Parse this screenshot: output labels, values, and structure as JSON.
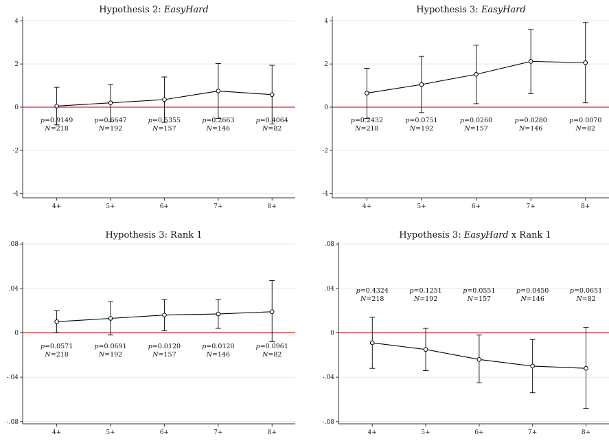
{
  "colors": {
    "zero_line": "#d62728",
    "series": "#000000",
    "grid": "#e6e6e6",
    "axis": "#333333"
  },
  "chart_data": [
    {
      "type": "line",
      "title_plain": "Hypothesis 2: ",
      "title_italic": "EasyHard",
      "title_suffix": "",
      "categories": [
        "4+",
        "5+",
        "6+",
        "7+",
        "8+"
      ],
      "values": [
        0.05,
        0.2,
        0.35,
        0.75,
        0.58
      ],
      "ci_low": [
        -0.82,
        -0.68,
        -0.7,
        -0.52,
        -0.78
      ],
      "ci_high": [
        0.92,
        1.06,
        1.4,
        2.02,
        1.94
      ],
      "yticks": [
        "4",
        "2",
        "0",
        "-2",
        "-4"
      ],
      "ytick_values": [
        4,
        2,
        0,
        -2,
        -4
      ],
      "ylim": [
        -4.2,
        4.2
      ],
      "reference_line": 0,
      "annotations_y": -0.35,
      "p_values": [
        "0.9149",
        "0.6647",
        "0.5355",
        "0.2663",
        "0.4064"
      ],
      "n_values": [
        "218",
        "192",
        "157",
        "146",
        "82"
      ]
    },
    {
      "type": "line",
      "title_plain": "Hypothesis 3: ",
      "title_italic": "EasyHard",
      "title_suffix": "",
      "categories": [
        "4+",
        "5+",
        "6+",
        "7+",
        "8+"
      ],
      "values": [
        0.65,
        1.05,
        1.52,
        2.12,
        2.06
      ],
      "ci_low": [
        -0.52,
        -0.25,
        0.16,
        0.62,
        0.2
      ],
      "ci_high": [
        1.8,
        2.35,
        2.87,
        3.6,
        3.92
      ],
      "yticks": [
        "4",
        "2",
        "0",
        "-2",
        "-4"
      ],
      "ytick_values": [
        4,
        2,
        0,
        -2,
        -4
      ],
      "ylim": [
        -4.2,
        4.2
      ],
      "reference_line": 0,
      "annotations_y": -0.35,
      "p_values": [
        "0.2432",
        "0.0751",
        "0.0260",
        "0.0280",
        "0.0070"
      ],
      "n_values": [
        "218",
        "192",
        "157",
        "146",
        "82"
      ]
    },
    {
      "type": "line",
      "title_plain": "Hypothesis 3: Rank 1",
      "title_italic": "",
      "title_suffix": "",
      "categories": [
        "4+",
        "5+",
        "6+",
        "7+",
        "8+"
      ],
      "values": [
        0.01,
        0.013,
        0.016,
        0.017,
        0.019
      ],
      "ci_low": [
        0.0,
        -0.002,
        0.002,
        0.004,
        -0.008
      ],
      "ci_high": [
        0.02,
        0.028,
        0.03,
        0.03,
        0.047
      ],
      "yticks": [
        ".08",
        ".04",
        "0",
        "-.04",
        "-.08"
      ],
      "ytick_values": [
        0.08,
        0.04,
        0,
        -0.04,
        -0.08
      ],
      "ylim": [
        -0.082,
        0.082
      ],
      "reference_line": 0,
      "annotations_y": -0.007,
      "p_values": [
        "0.0571",
        "0.0691",
        "0.0120",
        "0.0120",
        "0.0961"
      ],
      "n_values": [
        "218",
        "192",
        "157",
        "146",
        "82"
      ]
    },
    {
      "type": "line",
      "title_plain": "Hypothesis 3: ",
      "title_italic": "EasyHard",
      "title_suffix": " x Rank 1",
      "categories": [
        "4+",
        "5+",
        "6+",
        "7+",
        "8+"
      ],
      "values": [
        -0.009,
        -0.015,
        -0.024,
        -0.03,
        -0.032
      ],
      "ci_low": [
        -0.032,
        -0.034,
        -0.045,
        -0.054,
        -0.068
      ],
      "ci_high": [
        0.014,
        0.004,
        -0.002,
        -0.006,
        0.005
      ],
      "yticks": [
        ".08",
        ".04",
        "0",
        "-.04",
        "-.08"
      ],
      "ytick_values": [
        0.08,
        0.04,
        0,
        -0.04,
        -0.08
      ],
      "ylim": [
        -0.082,
        0.082
      ],
      "reference_line": 0,
      "annotations_y": 0.043,
      "p_values": [
        "0.4324",
        "0.1251",
        "0.0551",
        "0.0450",
        "0.0651"
      ],
      "n_values": [
        "218",
        "192",
        "157",
        "146",
        "82"
      ]
    }
  ]
}
